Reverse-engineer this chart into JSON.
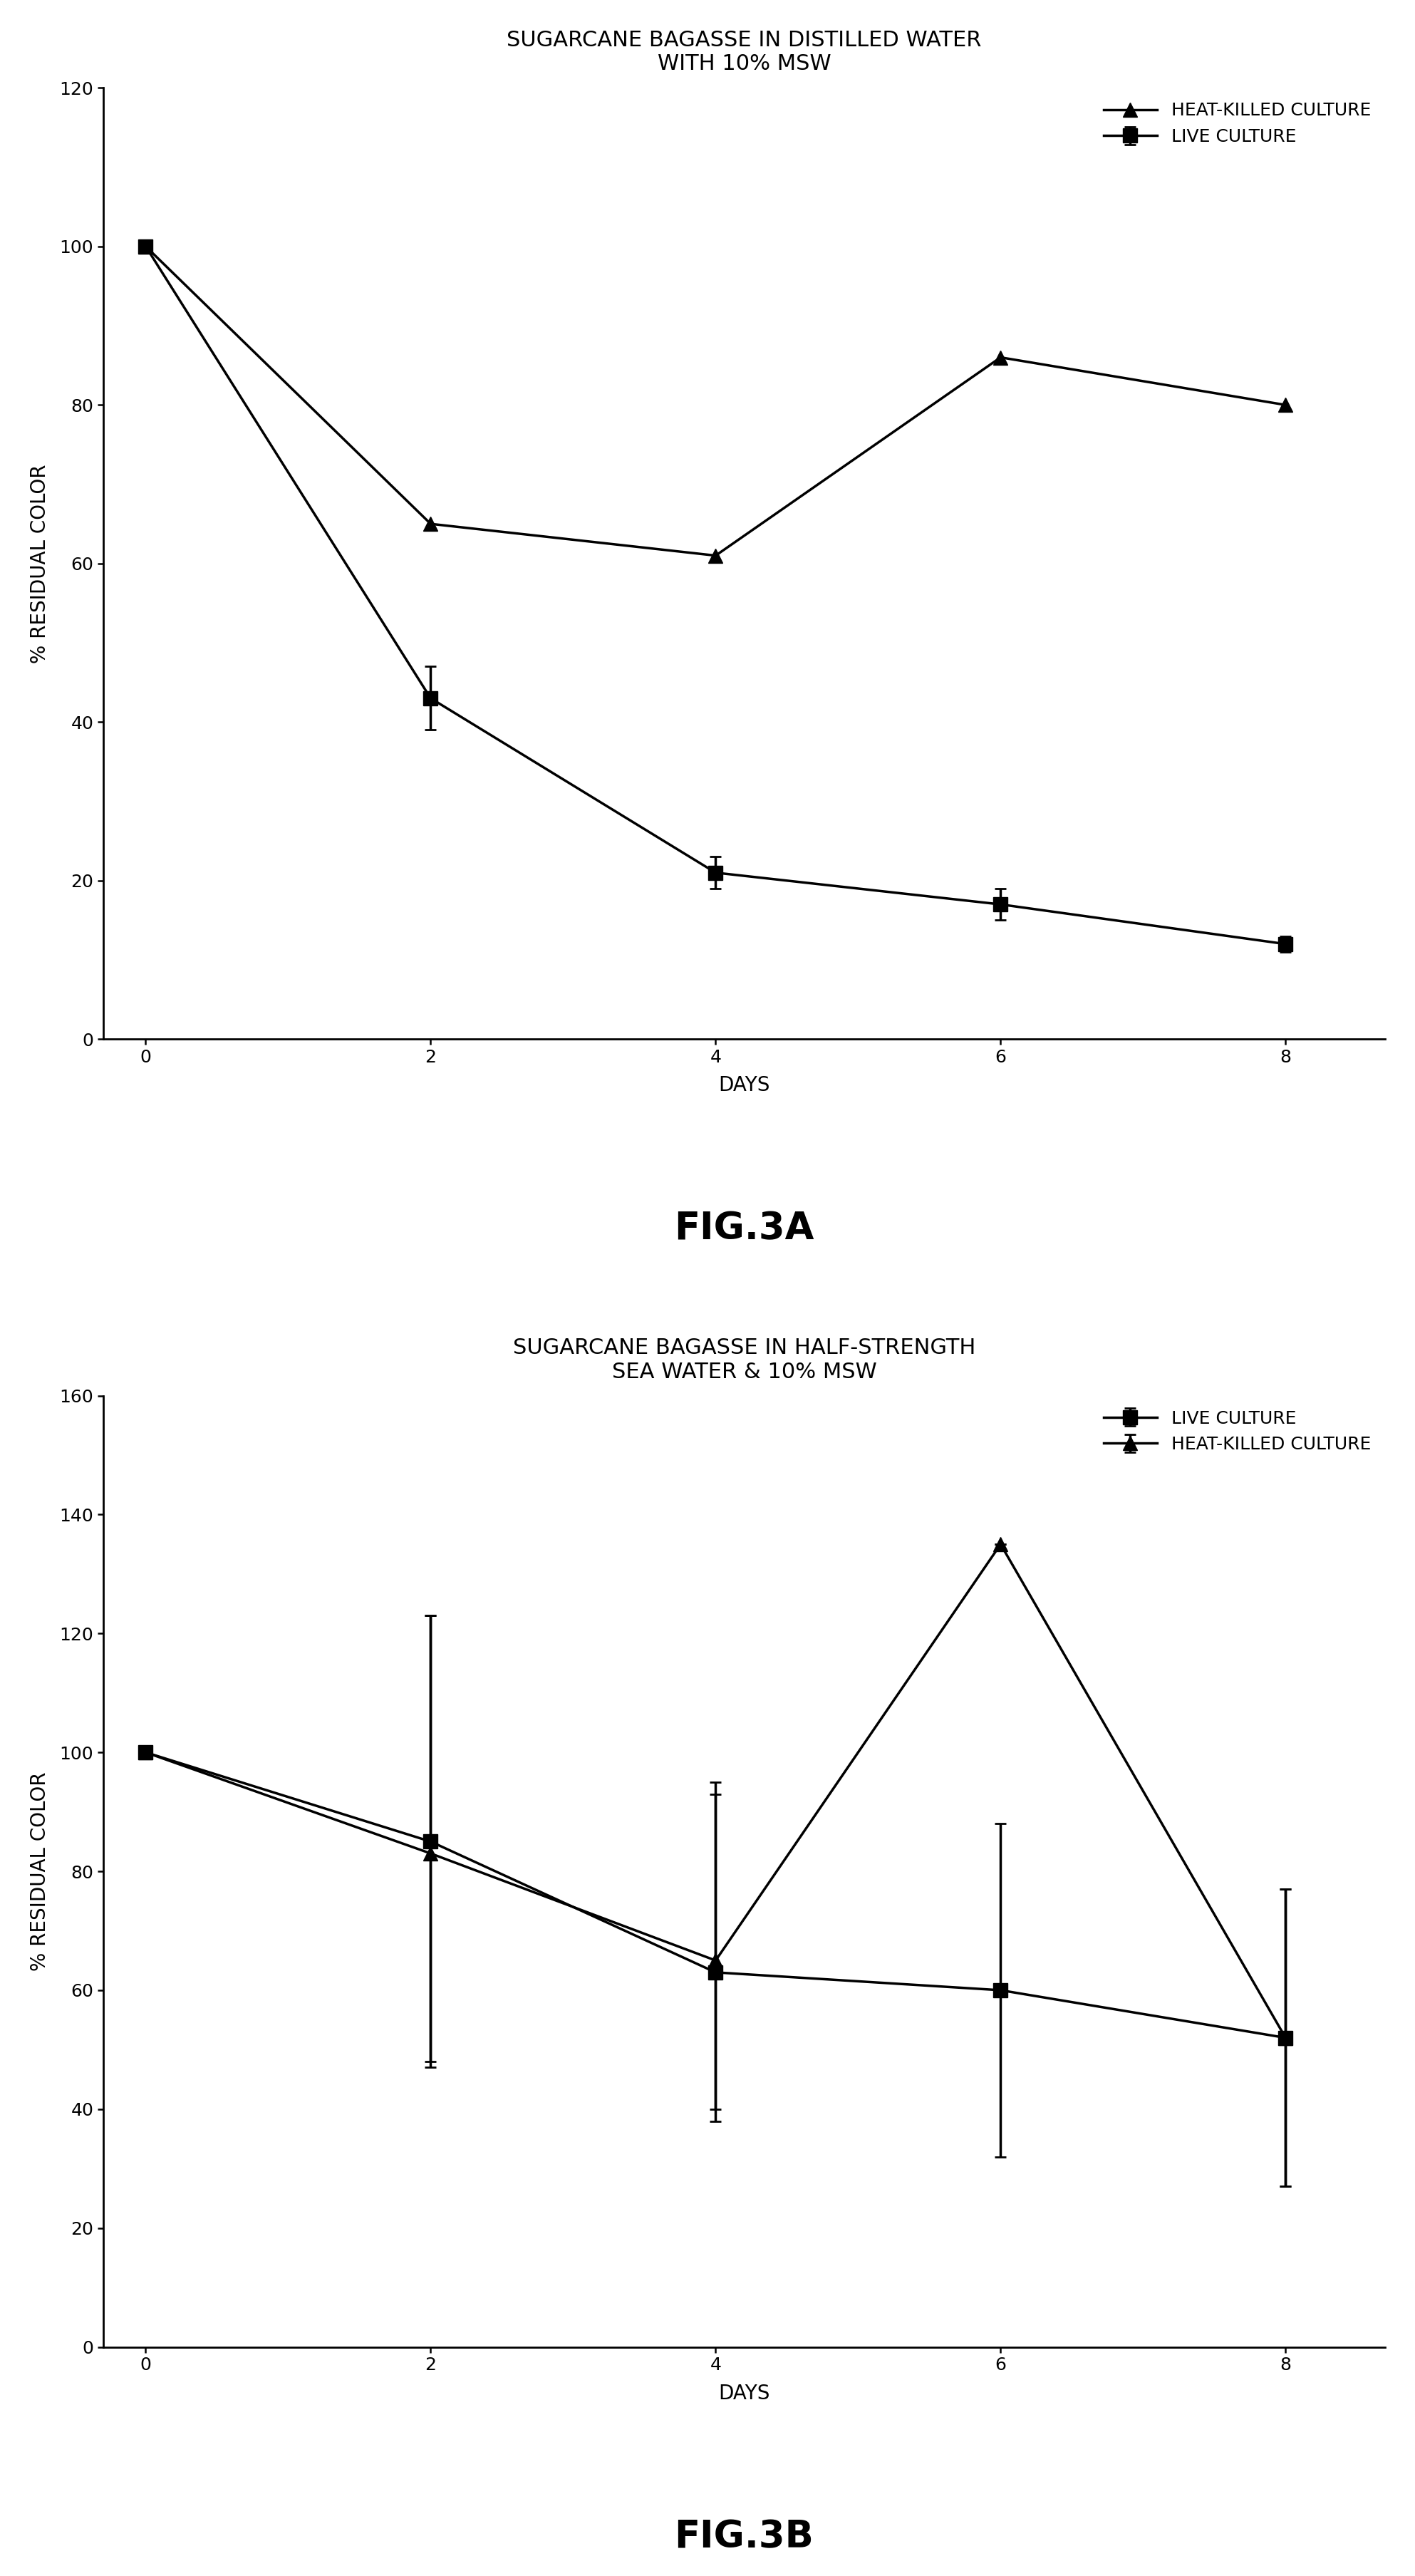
{
  "fig3a": {
    "title": "SUGARCANE BAGASSE IN DISTILLED WATER\nWITH 10% MSW",
    "xlabel": "DAYS",
    "ylabel": "% RESIDUAL COLOR",
    "ylim": [
      0,
      120
    ],
    "yticks": [
      0,
      20,
      40,
      60,
      80,
      100,
      120
    ],
    "xticks": [
      0,
      2,
      4,
      6,
      8
    ],
    "live_x": [
      0,
      2,
      4,
      6,
      8
    ],
    "live_y": [
      100,
      43,
      21,
      17,
      12
    ],
    "live_yerr": [
      0,
      4,
      2,
      2,
      1
    ],
    "hk_x": [
      0,
      2,
      4,
      6,
      8
    ],
    "hk_y": [
      100,
      65,
      61,
      86,
      80
    ],
    "hk_yerr": [
      0,
      0,
      0,
      0,
      0
    ],
    "fig_label": "FIG.3A"
  },
  "fig3b": {
    "title": "SUGARCANE BAGASSE IN HALF-STRENGTH\nSEA WATER & 10% MSW",
    "xlabel": "DAYS",
    "ylabel": "% RESIDUAL COLOR",
    "ylim": [
      0,
      160
    ],
    "yticks": [
      0,
      20,
      40,
      60,
      80,
      100,
      120,
      140,
      160
    ],
    "xticks": [
      0,
      2,
      4,
      6,
      8
    ],
    "live_x": [
      0,
      2,
      4,
      6,
      8
    ],
    "live_y": [
      100,
      85,
      63,
      60,
      52
    ],
    "live_yerr_upper": [
      0,
      38,
      30,
      28,
      25
    ],
    "live_yerr_lower": [
      0,
      38,
      25,
      28,
      25
    ],
    "hk_x": [
      0,
      2,
      4,
      6,
      8
    ],
    "hk_y": [
      100,
      83,
      65,
      135,
      52
    ],
    "hk_yerr_upper": [
      0,
      40,
      30,
      0,
      25
    ],
    "hk_yerr_lower": [
      0,
      35,
      25,
      0,
      25
    ],
    "fig_label": "FIG.3B"
  },
  "legend_live": "LIVE CULTURE",
  "legend_hk": "HEAT-KILLED CULTURE",
  "line_color": "#000000",
  "marker_square": "s",
  "marker_triangle": "^",
  "markersize": 14,
  "linewidth": 2.5,
  "title_fontsize": 22,
  "label_fontsize": 20,
  "tick_fontsize": 18,
  "legend_fontsize": 18,
  "fig_label_fontsize": 38,
  "bg_color": "#ffffff"
}
